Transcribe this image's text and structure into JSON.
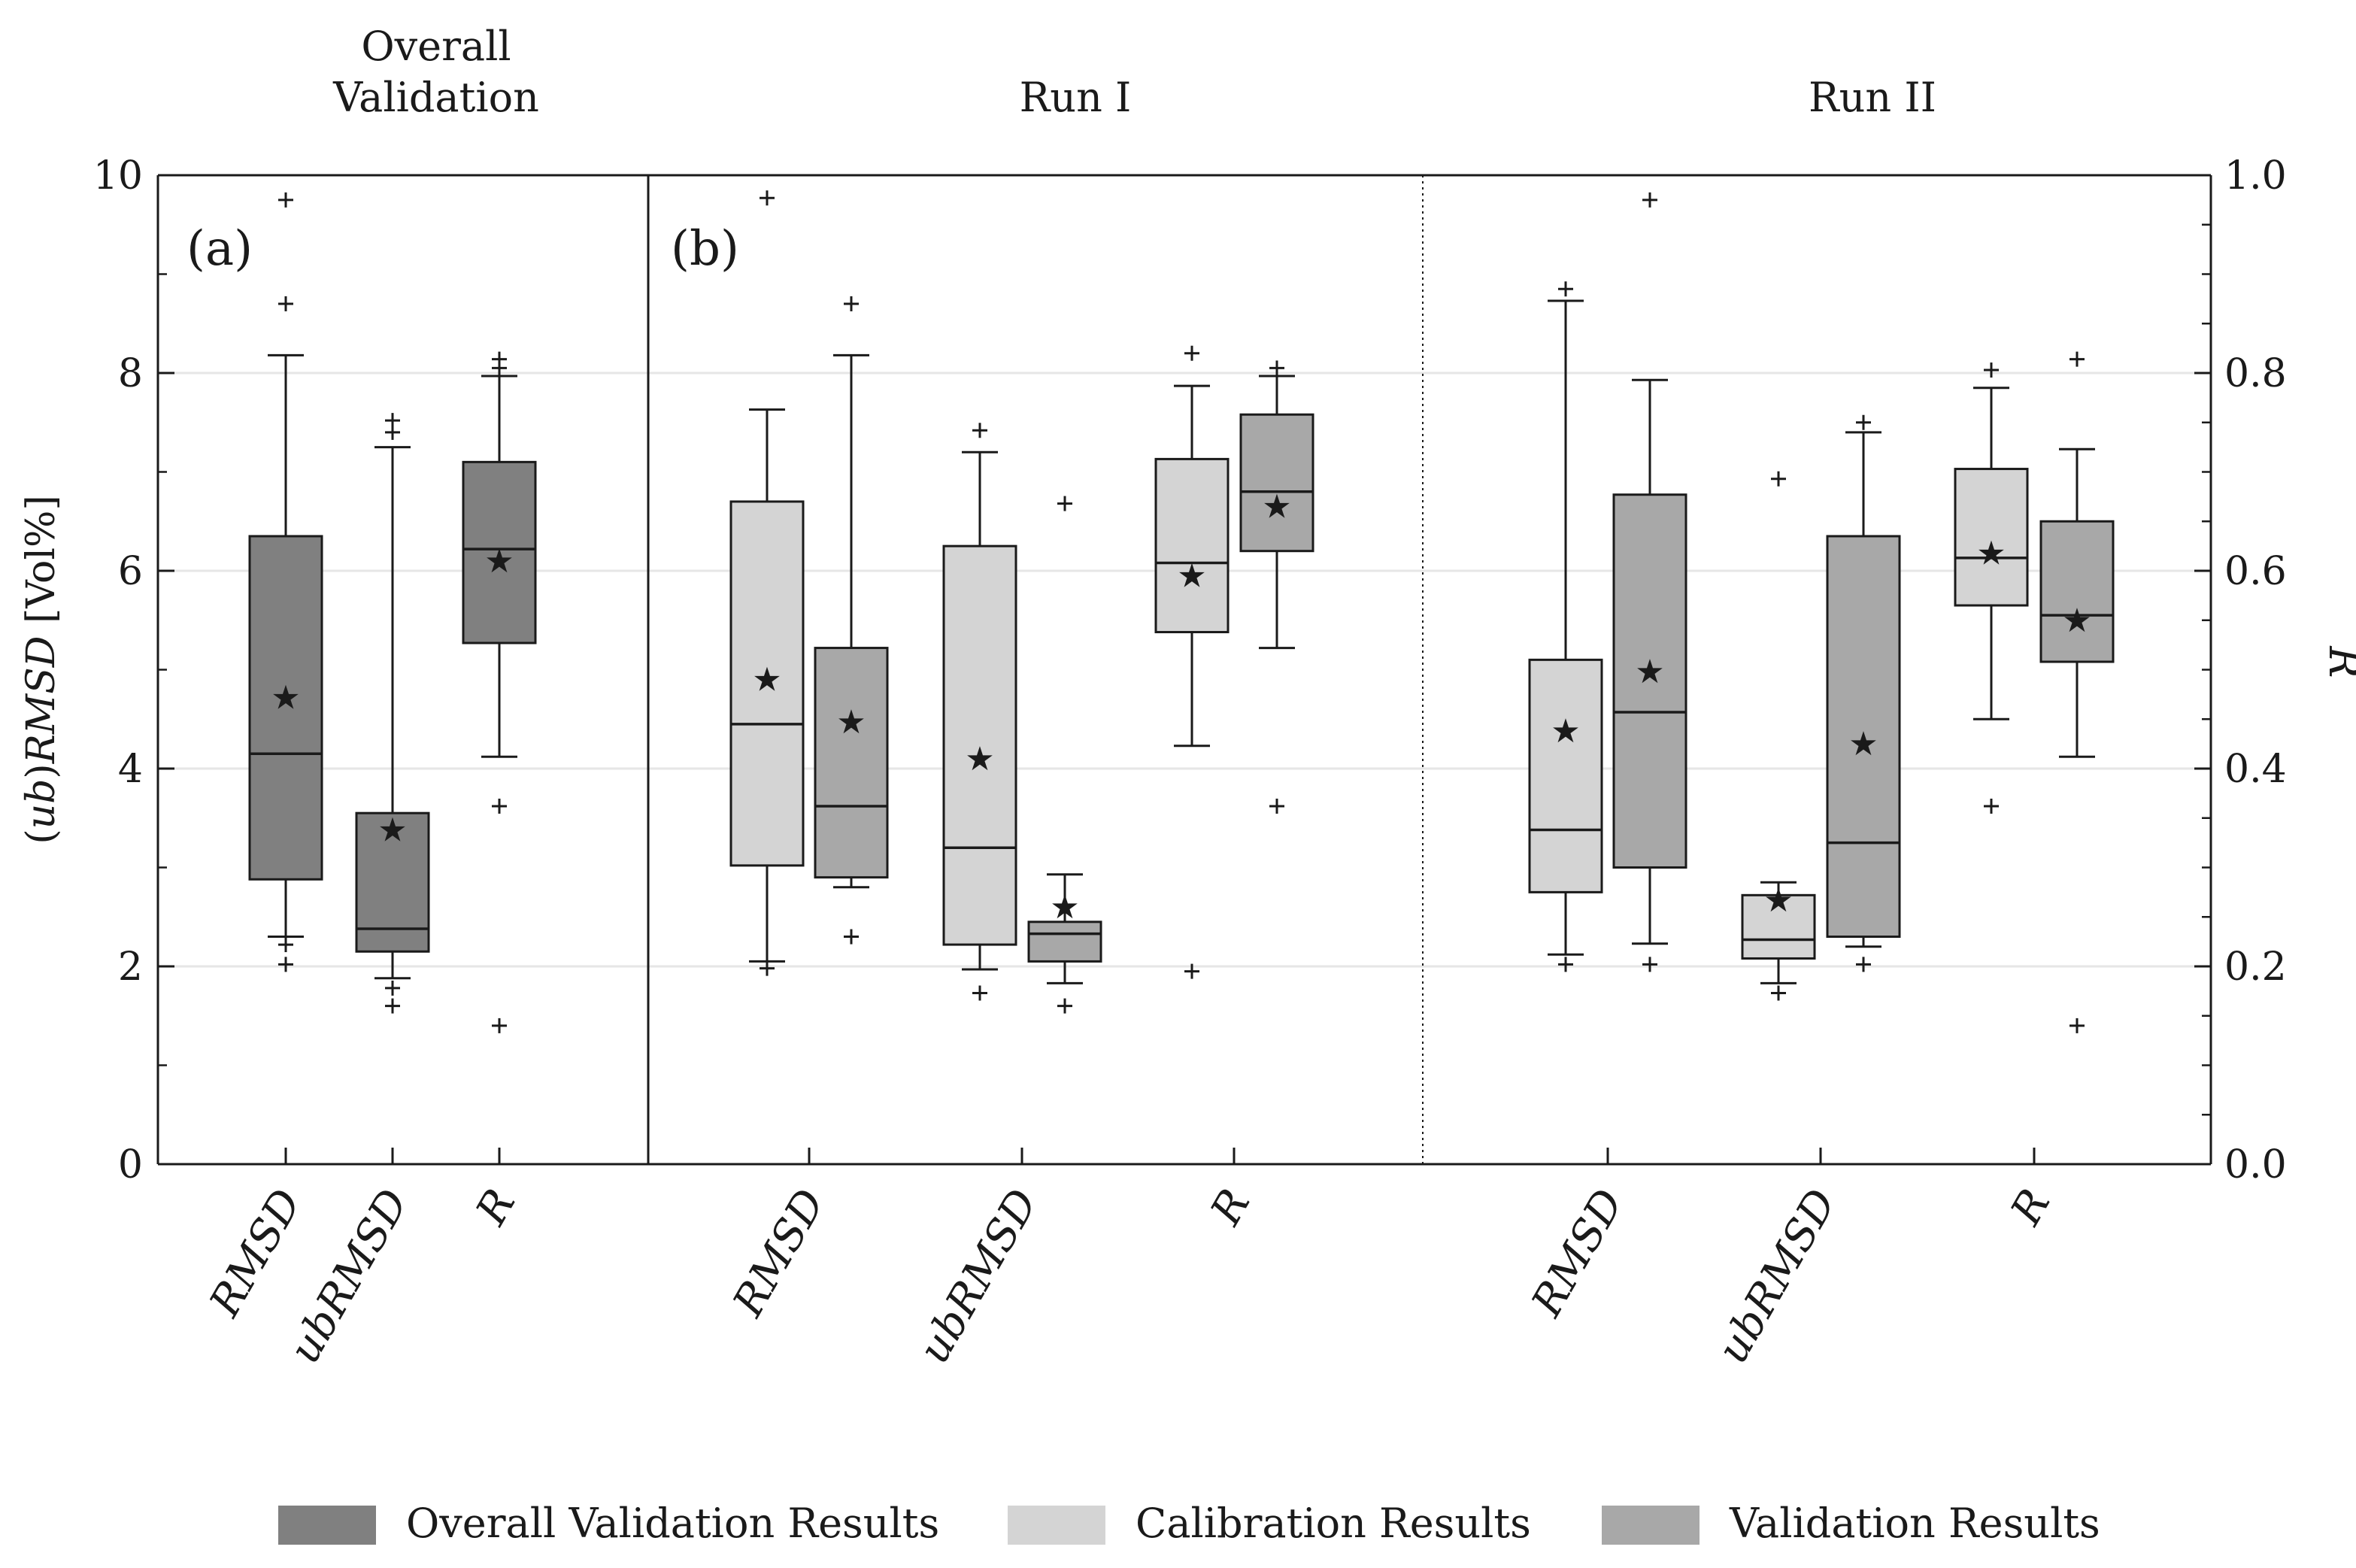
{
  "chart_data": {
    "type": "box",
    "left_axis_label_parts": [
      "(",
      "ub",
      ")",
      "RMSD",
      " [Vol%]"
    ],
    "right_axis_label": "R",
    "left_ylim": [
      0,
      10
    ],
    "right_ylim": [
      0.0,
      1.0
    ],
    "left_ticks": [
      "0",
      "2",
      "4",
      "6",
      "8",
      "10"
    ],
    "right_ticks": [
      "0.0",
      "0.2",
      "0.4",
      "0.6",
      "0.8",
      "1.0"
    ],
    "panels": [
      {
        "title_lines": [
          "Overall",
          "Validation"
        ],
        "letter": "(a)",
        "categories": [
          "RMSD",
          "ubRMSD",
          "R"
        ],
        "boxes": [
          {
            "group": "overall",
            "category": "RMSD",
            "min": 2.3,
            "q1": 2.88,
            "median": 4.15,
            "q3": 6.35,
            "max": 8.18,
            "mean": 4.72,
            "outliers": [
              2.22,
              2.02,
              8.7,
              9.75
            ]
          },
          {
            "group": "overall",
            "category": "ubRMSD",
            "min": 1.88,
            "q1": 2.15,
            "median": 2.38,
            "q3": 3.55,
            "max": 7.25,
            "mean": 3.38,
            "outliers": [
              1.78,
              1.6,
              7.4,
              7.52
            ]
          },
          {
            "group": "overall",
            "category": "R",
            "min": 4.12,
            "q1": 5.27,
            "median": 6.22,
            "q3": 7.1,
            "max": 7.97,
            "mean": 6.1,
            "outliers": [
              3.62,
              1.4,
              8.05,
              8.14
            ]
          }
        ]
      },
      {
        "title_lines": [
          "Run I"
        ],
        "letter": "(b)",
        "categories": [
          "RMSD",
          "ubRMSD",
          "R"
        ],
        "boxes": [
          {
            "group": "calibration",
            "category": "RMSD",
            "min": 2.05,
            "q1": 3.02,
            "median": 4.45,
            "q3": 6.7,
            "max": 7.63,
            "mean": 4.9,
            "outliers": [
              1.98,
              9.77
            ]
          },
          {
            "group": "validation",
            "category": "RMSD",
            "min": 2.8,
            "q1": 2.9,
            "median": 3.62,
            "q3": 5.22,
            "max": 8.18,
            "mean": 4.47,
            "outliers": [
              2.3,
              8.7
            ]
          },
          {
            "group": "calibration",
            "category": "ubRMSD",
            "min": 1.97,
            "q1": 2.22,
            "median": 3.2,
            "q3": 6.25,
            "max": 7.2,
            "mean": 4.1,
            "outliers": [
              1.73,
              7.42
            ]
          },
          {
            "group": "validation",
            "category": "ubRMSD",
            "min": 1.83,
            "q1": 2.05,
            "median": 2.33,
            "q3": 2.45,
            "max": 2.93,
            "mean": 2.6,
            "outliers": [
              1.6,
              6.68
            ]
          },
          {
            "group": "calibration",
            "category": "R",
            "min": 4.23,
            "q1": 5.38,
            "median": 6.08,
            "q3": 7.13,
            "max": 7.87,
            "mean": 5.95,
            "outliers": [
              1.95,
              8.2
            ]
          },
          {
            "group": "validation",
            "category": "R",
            "min": 5.22,
            "q1": 6.2,
            "median": 6.8,
            "q3": 7.58,
            "max": 7.97,
            "mean": 6.65,
            "outliers": [
              3.62,
              8.05
            ]
          }
        ]
      },
      {
        "title_lines": [
          "Run II"
        ],
        "letter": "",
        "categories": [
          "RMSD",
          "ubRMSD",
          "R"
        ],
        "boxes": [
          {
            "group": "calibration",
            "category": "RMSD",
            "min": 2.12,
            "q1": 2.75,
            "median": 3.38,
            "q3": 5.1,
            "max": 8.73,
            "mean": 4.38,
            "outliers": [
              2.02,
              8.85
            ]
          },
          {
            "group": "validation",
            "category": "RMSD",
            "min": 2.23,
            "q1": 3.0,
            "median": 4.57,
            "q3": 6.77,
            "max": 7.93,
            "mean": 4.98,
            "outliers": [
              2.02,
              9.75
            ]
          },
          {
            "group": "calibration",
            "category": "ubRMSD",
            "min": 1.83,
            "q1": 2.08,
            "median": 2.27,
            "q3": 2.72,
            "max": 2.85,
            "mean": 2.67,
            "outliers": [
              1.73,
              6.93
            ]
          },
          {
            "group": "validation",
            "category": "ubRMSD",
            "min": 2.2,
            "q1": 2.3,
            "median": 3.25,
            "q3": 6.35,
            "max": 7.4,
            "mean": 4.25,
            "outliers": [
              2.02,
              7.5
            ]
          },
          {
            "group": "calibration",
            "category": "R",
            "min": 4.5,
            "q1": 5.65,
            "median": 6.13,
            "q3": 7.03,
            "max": 7.85,
            "mean": 6.18,
            "outliers": [
              3.62,
              8.03
            ]
          },
          {
            "group": "validation",
            "category": "R",
            "min": 4.12,
            "q1": 5.08,
            "median": 5.55,
            "q3": 6.5,
            "max": 7.23,
            "mean": 5.5,
            "outliers": [
              1.4,
              8.14
            ]
          }
        ]
      }
    ],
    "legend": [
      {
        "label": "Overall Validation Results",
        "color": "#808080"
      },
      {
        "label": "Calibration Results",
        "color": "#d4d4d4"
      },
      {
        "label": "Validation Results",
        "color": "#a8a8a8"
      }
    ],
    "legend_position": "bottom",
    "grid": true,
    "colors": {
      "overall": "#808080",
      "calibration": "#d4d4d4",
      "validation": "#a8a8a8",
      "grid": "#e6e6e6",
      "stroke": "#1a1a1a"
    }
  }
}
